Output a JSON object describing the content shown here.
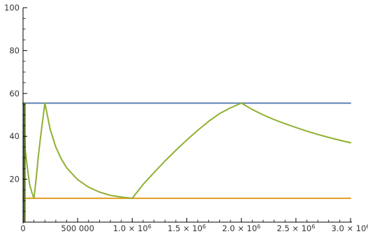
{
  "chart_data": {
    "type": "line",
    "title": "",
    "xlabel": "",
    "ylabel": "",
    "xlim": [
      0,
      3000000
    ],
    "ylim": [
      0,
      100
    ],
    "grid": false,
    "x_ticks": [
      {
        "value": 0,
        "label": "0"
      },
      {
        "value": 500000,
        "label": "500 000"
      },
      {
        "value": 1000000,
        "mantissa": "1.0",
        "times": "×",
        "base": "10",
        "exponent": "6"
      },
      {
        "value": 1500000,
        "mantissa": "1.5",
        "times": "×",
        "base": "10",
        "exponent": "6"
      },
      {
        "value": 2000000,
        "mantissa": "2.0",
        "times": "×",
        "base": "10",
        "exponent": "6"
      },
      {
        "value": 2500000,
        "mantissa": "2.5",
        "times": "×",
        "base": "10",
        "exponent": "6"
      },
      {
        "value": 3000000,
        "mantissa": "3.0",
        "times": "×",
        "base": "10",
        "exponent": "6"
      }
    ],
    "y_ticks": [
      {
        "value": 20,
        "label": "20"
      },
      {
        "value": 40,
        "label": "40"
      },
      {
        "value": 60,
        "label": "60"
      },
      {
        "value": 80,
        "label": "80"
      },
      {
        "value": 100,
        "label": "100"
      }
    ],
    "series": [
      {
        "color": "#5E81B5",
        "x": [
          0,
          3000000
        ],
        "y": [
          55.5,
          55.5
        ]
      },
      {
        "color": "#E19C24",
        "x": [
          0,
          3000000
        ],
        "y": [
          11.1,
          11.1
        ]
      },
      {
        "color": "#8FB032",
        "x": [
          0,
          10000,
          20000,
          40000,
          60000,
          80000,
          100000,
          120000,
          140000,
          160000,
          180000,
          200000,
          250000,
          300000,
          350000,
          400000,
          500000,
          600000,
          700000,
          800000,
          900000,
          1000000,
          1100000,
          1200000,
          1300000,
          1400000,
          1500000,
          1600000,
          1700000,
          1800000,
          1900000,
          2000000,
          2100000,
          2200000,
          2300000,
          2400000,
          2500000,
          2600000,
          2700000,
          2800000,
          2900000,
          3000000
        ],
        "y": [
          55.5,
          55.5,
          33.7,
          25.2,
          17.6,
          14.0,
          11.1,
          20.2,
          30.8,
          39.5,
          47.5,
          55.5,
          43.0,
          35.0,
          29.5,
          25.3,
          19.8,
          16.3,
          14.0,
          12.5,
          11.7,
          11.1,
          17.6,
          23.1,
          28.5,
          33.5,
          38.3,
          42.8,
          47.0,
          50.6,
          53.3,
          55.5,
          52.5,
          50.0,
          47.8,
          45.9,
          44.1,
          42.4,
          40.9,
          39.5,
          38.2,
          37.0
        ]
      }
    ],
    "annotations": [
      {
        "type": "vertical-band",
        "color": "#556B2F",
        "x": [
          0,
          10000
        ],
        "y": [
          0,
          55.5
        ]
      }
    ]
  }
}
